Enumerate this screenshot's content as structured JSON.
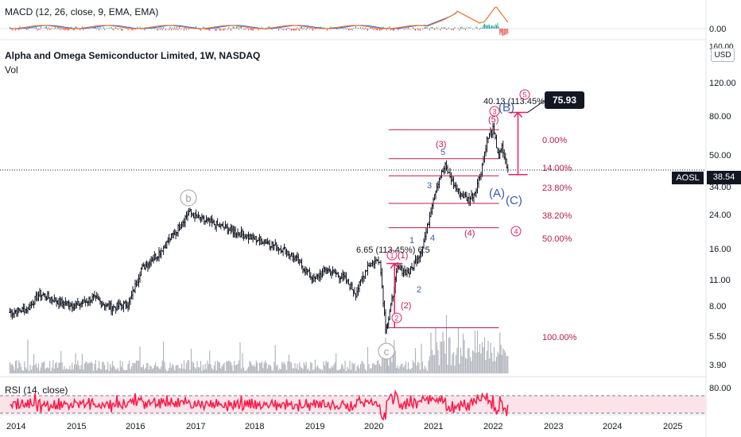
{
  "macd_panel": {
    "title": "MACD (12, 26, close, 9, EMA, EMA)",
    "axis_label": "0.00"
  },
  "main_panel": {
    "title": "Alpha and Omega Semiconductor Limited, 1W, NASDAQ",
    "subtitle": "Vol",
    "currency_button": "USD",
    "price_axis": [
      "120.00",
      "80.00",
      "50.00",
      "34.00",
      "24.00",
      "16.00",
      "11.00",
      "8.00",
      "5.50",
      "3.90"
    ],
    "ticker_tag": "AOSL",
    "last_price": "38.54",
    "target_callout": "75.93",
    "top_cut_label": "160.00"
  },
  "rsi_panel": {
    "title": "RSI (14, close)",
    "axis_label": "80.00"
  },
  "time_axis": [
    "2014",
    "2015",
    "2016",
    "2017",
    "2018",
    "2019",
    "2020",
    "2021",
    "2022",
    "2023",
    "2024",
    "2025"
  ],
  "fib_levels": [
    "0.00%",
    "14.00%",
    "23.80%",
    "38.20%",
    "50.00%",
    "100.00%"
  ],
  "annotations": {
    "measure_top": "40.13 (113.45%)",
    "measure_bottom": "6.65 (113.45%) 6.5",
    "wave_b_circle": "b",
    "wave_c_circle": "c",
    "wave_B": "(B)",
    "wave_A": "(A)",
    "wave_C": "(C)",
    "wave_3_paren": "(3)",
    "wave_4_paren": "(4)",
    "wave_5_paren": "(5)",
    "wave_1_paren": "(1)",
    "wave_2_paren": "(2)",
    "circ_1": "1",
    "circ_2": "2",
    "circ_3": "3",
    "circ_4": "4",
    "circ_5": "5",
    "num_1": "1",
    "num_2": "2",
    "num_3": "3",
    "num_4": "4",
    "num_5": "5"
  },
  "colors": {
    "candle": "#131722",
    "fib": "#b71c4a",
    "measure": "#e91e63",
    "macd_fast": "#2962ff",
    "macd_slow": "#ff6d00",
    "rsi": "#ff1744",
    "rsi_band": "#fbe3ea"
  },
  "chart_data": {
    "type": "line",
    "title": "Alpha and Omega Semiconductor Limited, 1W, NASDAQ",
    "xlabel": "",
    "ylabel": "",
    "y_scale": "log",
    "ylim": [
      3.5,
      160
    ],
    "series": [
      {
        "name": "",
        "x": [
          2013.9,
          2014.2,
          2014.4,
          2014.7,
          2015.0,
          2015.3,
          2015.6,
          2015.9,
          2016.1,
          2016.4,
          2016.7,
          2016.9,
          2017.1,
          2017.4,
          2017.7,
          2017.9,
          2018.2,
          2018.5,
          2018.7,
          2019.0,
          2019.2,
          2019.5,
          2019.7,
          2019.9,
          2020.1,
          2020.2,
          2020.25,
          2020.4,
          2020.6,
          2020.8,
          2020.9,
          2021.0,
          2021.1,
          2021.2,
          2021.4,
          2021.6,
          2021.7,
          2021.8,
          2021.9,
          2022.0,
          2022.1,
          2022.15,
          2022.25
        ],
        "values": [
          7.2,
          7.5,
          9.0,
          8.2,
          7.8,
          8.5,
          7.6,
          8.0,
          12.0,
          14.5,
          19.0,
          23.5,
          21.5,
          20.0,
          18.5,
          17.5,
          16.5,
          15.0,
          13.5,
          10.5,
          12.0,
          10.8,
          9.0,
          12.5,
          13.5,
          6.0,
          6.65,
          12.0,
          11.5,
          15.0,
          19.5,
          28.0,
          35.0,
          40.13,
          30.0,
          27.0,
          30.0,
          38.0,
          55.0,
          62.0,
          45.0,
          50.0,
          38.54
        ]
      }
    ],
    "fib_levels": [
      {
        "label": "0.00%",
        "price": 62.0
      },
      {
        "label": "14.00%",
        "price": 44.0
      },
      {
        "label": "23.80%",
        "price": 36.0
      },
      {
        "label": "38.20%",
        "price": 26.0
      },
      {
        "label": "50.00%",
        "price": 19.5
      },
      {
        "label": "100.00%",
        "price": 6.0
      }
    ],
    "target": 75.93,
    "last": 38.54
  }
}
